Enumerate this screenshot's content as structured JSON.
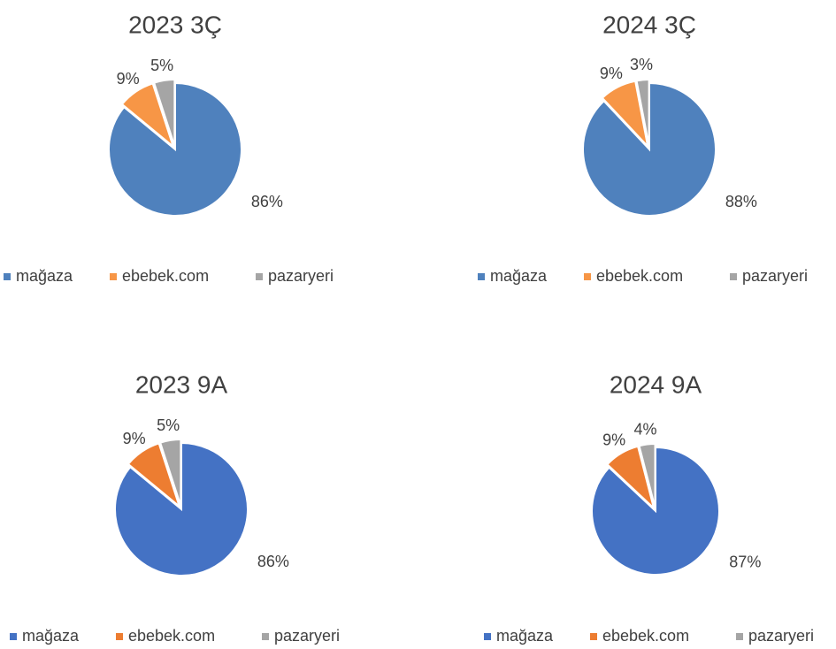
{
  "chart_data": [
    {
      "type": "pie",
      "title": "2023 3Ç",
      "categories": [
        "mağaza",
        "ebebek.com",
        "pazaryeri"
      ],
      "values": [
        86,
        9,
        5
      ],
      "value_labels": [
        "86%",
        "9%",
        "5%"
      ],
      "colors": [
        "#4f81bd",
        "#f79646",
        "#a5a5a5"
      ],
      "legend": "bottom"
    },
    {
      "type": "pie",
      "title": "2024 3Ç",
      "categories": [
        "mağaza",
        "ebebek.com",
        "pazaryeri"
      ],
      "values": [
        88,
        9,
        3
      ],
      "value_labels": [
        "88%",
        "9%",
        "3%"
      ],
      "colors": [
        "#4f81bd",
        "#f79646",
        "#a5a5a5"
      ],
      "legend": "bottom"
    },
    {
      "type": "pie",
      "title": "2023 9A",
      "categories": [
        "mağaza",
        "ebebek.com",
        "pazaryeri"
      ],
      "values": [
        86,
        9,
        5
      ],
      "value_labels": [
        "86%",
        "9%",
        "5%"
      ],
      "colors": [
        "#4472c4",
        "#ed7d31",
        "#a5a5a5"
      ],
      "legend": "bottom"
    },
    {
      "type": "pie",
      "title": "2024 9A",
      "categories": [
        "mağaza",
        "ebebek.com",
        "pazaryeri"
      ],
      "values": [
        87,
        9,
        4
      ],
      "value_labels": [
        "87%",
        "9%",
        "4%"
      ],
      "colors": [
        "#4472c4",
        "#ed7d31",
        "#a5a5a5"
      ],
      "legend": "bottom"
    }
  ]
}
